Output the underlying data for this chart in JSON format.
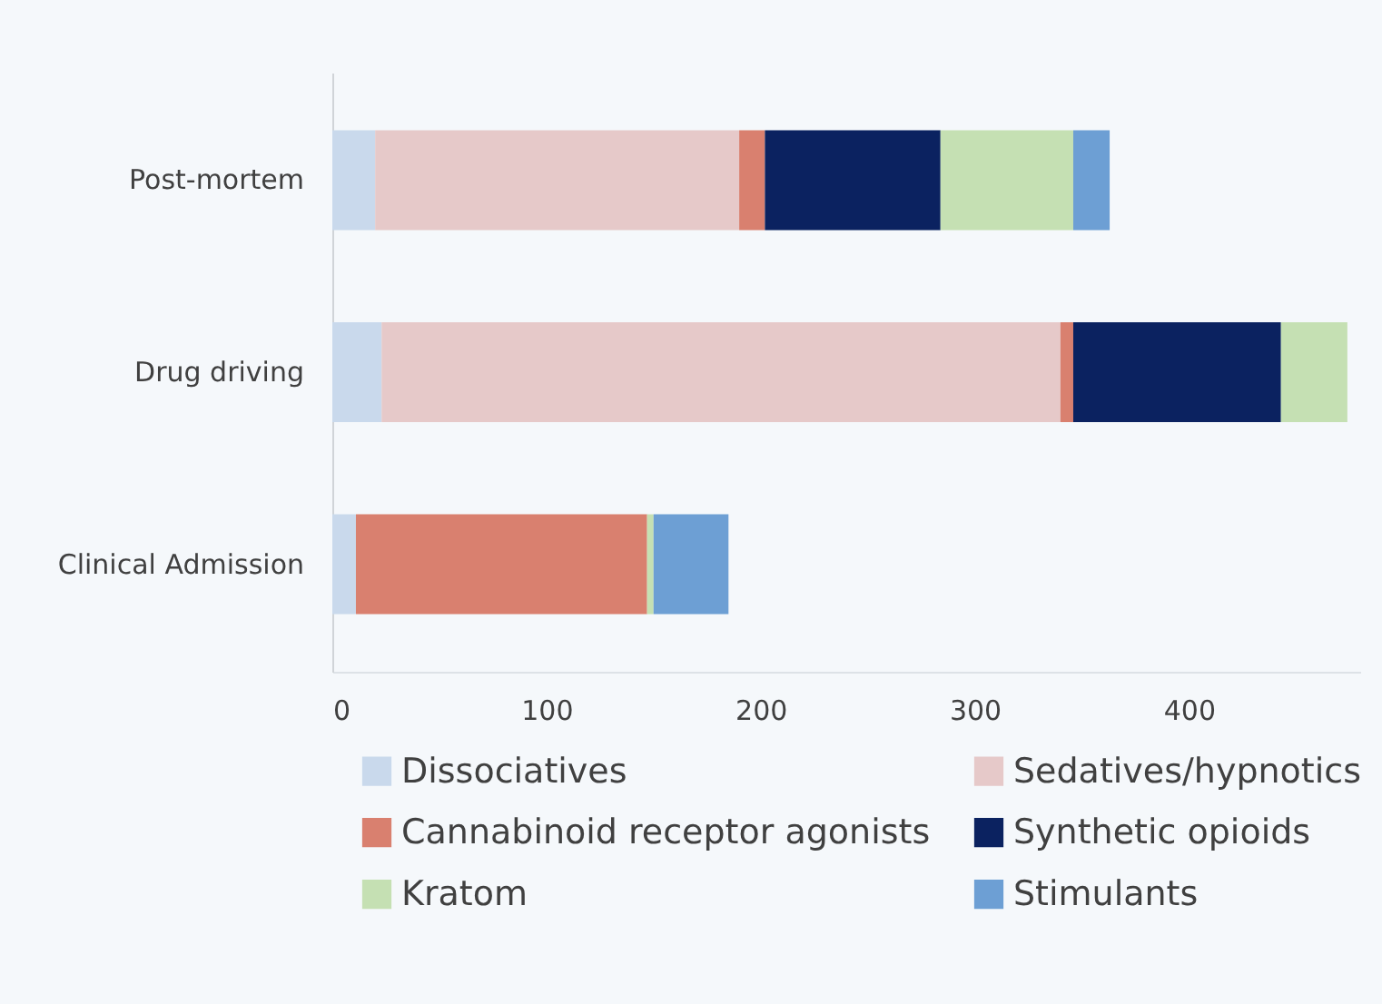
{
  "chart_data": {
    "type": "bar",
    "orientation": "horizontal",
    "stacked": true,
    "categories": [
      "Post-mortem",
      "Drug driving",
      "Clinical Admission"
    ],
    "series": [
      {
        "name": "Dissociatives",
        "color": "#c9d9ec",
        "values": [
          20,
          23,
          11
        ]
      },
      {
        "name": "Sedatives/hypnotics",
        "color": "#e6c9c9",
        "values": [
          170,
          317,
          0
        ]
      },
      {
        "name": "Cannabinoid receptor agonists",
        "color": "#d9806f",
        "values": [
          12,
          6,
          136
        ]
      },
      {
        "name": "Synthetic opioids",
        "color": "#0b2260",
        "values": [
          82,
          97,
          0
        ]
      },
      {
        "name": "Kratom",
        "color": "#c5e0b3",
        "values": [
          62,
          31,
          3
        ]
      },
      {
        "name": "Stimulants",
        "color": "#6d9fd4",
        "values": [
          17,
          0,
          35
        ]
      }
    ],
    "xlim": [
      0,
      480
    ],
    "xticks": [
      0,
      100,
      200,
      300,
      400
    ],
    "grid": false,
    "legend": "bottom"
  }
}
